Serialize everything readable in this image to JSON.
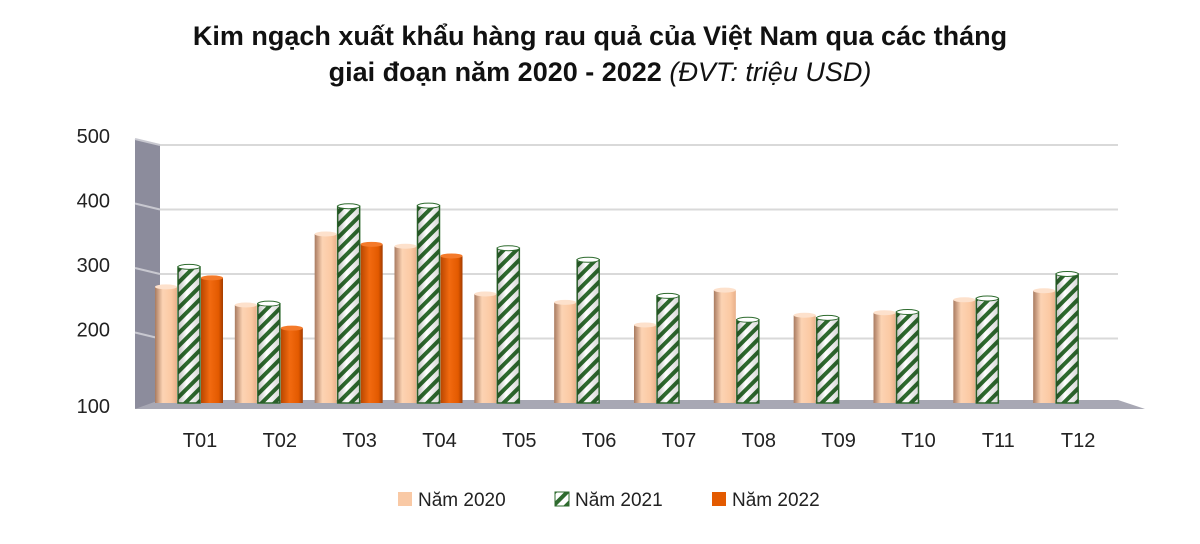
{
  "chart_data": {
    "type": "bar",
    "title": "Kim ngạch xuất khẩu hàng rau quả của Việt Nam qua các tháng",
    "title_line2": "giai đoạn năm 2020 - 2022",
    "unit_note": "(ĐVT: triệu USD)",
    "categories": [
      "T01",
      "T02",
      "T03",
      "T04",
      "T05",
      "T06",
      "T07",
      "T08",
      "T09",
      "T10",
      "T11",
      "T12"
    ],
    "series": [
      {
        "name": "Năm 2020",
        "color": "#f9c9a5",
        "values": [
          280,
          252,
          362,
          343,
          269,
          256,
          221,
          275,
          236,
          240,
          260,
          274
        ]
      },
      {
        "name": "Năm 2021",
        "color": "#2e6b2e",
        "pattern": "diagonal-stripes",
        "values": [
          311,
          254,
          405,
          406,
          340,
          322,
          266,
          229,
          232,
          241,
          262,
          300
        ]
      },
      {
        "name": "Năm 2022",
        "color": "#e35a00",
        "values": [
          294,
          216,
          346,
          328,
          null,
          null,
          null,
          null,
          null,
          null,
          null,
          null
        ]
      }
    ],
    "ylim": [
      100,
      500
    ],
    "yticks": [
      "100",
      "200",
      "300",
      "400",
      "500"
    ],
    "grid": true,
    "legend": "bottom",
    "style": "3d-cylinder"
  }
}
